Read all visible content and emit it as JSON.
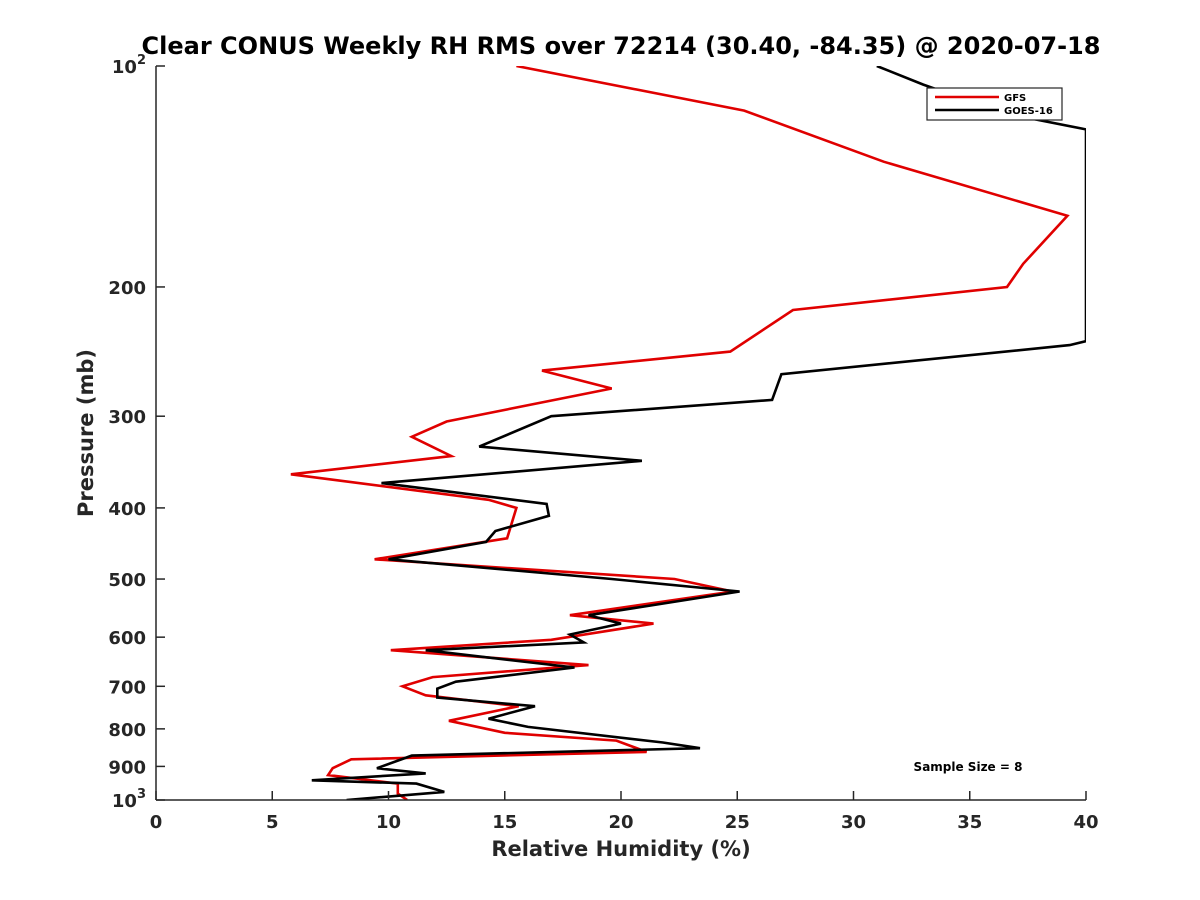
{
  "chart_data": {
    "type": "line",
    "title": "Clear CONUS Weekly RH RMS over 72214 (30.40, -84.35) @ 2020-07-18",
    "xlabel": "Relative Humidity (%)",
    "ylabel": "Pressure (mb)",
    "xlim": [
      0,
      40
    ],
    "ylim": [
      100,
      1000
    ],
    "y_scale": "log",
    "y_reversed": true,
    "x_ticks": [
      0,
      5,
      10,
      15,
      20,
      25,
      30,
      35,
      40
    ],
    "y_ticks": [
      {
        "value": 100,
        "label": "10",
        "sup": "2"
      },
      {
        "value": 200,
        "label": "200"
      },
      {
        "value": 300,
        "label": "300"
      },
      {
        "value": 400,
        "label": "400"
      },
      {
        "value": 500,
        "label": "500"
      },
      {
        "value": 600,
        "label": "600"
      },
      {
        "value": 700,
        "label": "700"
      },
      {
        "value": 800,
        "label": "800"
      },
      {
        "value": 900,
        "label": "900"
      },
      {
        "value": 1000,
        "label": "10",
        "sup": "3"
      }
    ],
    "legend_position": "top-right",
    "annotation": "Sample Size = 8",
    "series": [
      {
        "name": "GFS",
        "color": "#e00000",
        "points": [
          [
            15.5,
            100
          ],
          [
            25.3,
            115
          ],
          [
            31.3,
            135
          ],
          [
            39.2,
            160
          ],
          [
            37.3,
            186
          ],
          [
            36.6,
            200
          ],
          [
            27.4,
            215
          ],
          [
            24.7,
            245
          ],
          [
            16.6,
            260
          ],
          [
            19.6,
            275
          ],
          [
            12.5,
            305
          ],
          [
            11.0,
            320
          ],
          [
            12.7,
            340
          ],
          [
            5.8,
            360
          ],
          [
            14.3,
            390
          ],
          [
            15.5,
            400
          ],
          [
            15.1,
            440
          ],
          [
            9.4,
            470
          ],
          [
            22.3,
            500
          ],
          [
            24.8,
            520
          ],
          [
            17.8,
            560
          ],
          [
            21.4,
            575
          ],
          [
            17.0,
            605
          ],
          [
            10.1,
            625
          ],
          [
            18.6,
            655
          ],
          [
            11.9,
            680
          ],
          [
            10.6,
            700
          ],
          [
            11.6,
            720
          ],
          [
            15.6,
            745
          ],
          [
            12.6,
            780
          ],
          [
            15.0,
            810
          ],
          [
            19.8,
            830
          ],
          [
            21.1,
            860
          ],
          [
            8.4,
            880
          ],
          [
            7.6,
            905
          ],
          [
            7.4,
            925
          ],
          [
            10.4,
            950
          ],
          [
            10.4,
            980
          ],
          [
            10.8,
            1000
          ]
        ]
      },
      {
        "name": "GOES-16",
        "color": "#000000",
        "points": [
          [
            31.0,
            100
          ],
          [
            33.0,
            106
          ],
          [
            36.5,
            116
          ],
          [
            40.0,
            122
          ],
          [
            40.0,
            237
          ],
          [
            39.3,
            240
          ],
          [
            26.9,
            263
          ],
          [
            26.5,
            285
          ],
          [
            17.0,
            300
          ],
          [
            13.9,
            330
          ],
          [
            20.9,
            345
          ],
          [
            9.7,
            370
          ],
          [
            16.8,
            395
          ],
          [
            16.9,
            410
          ],
          [
            14.6,
            430
          ],
          [
            14.2,
            445
          ],
          [
            10.0,
            470
          ],
          [
            19.6,
            500
          ],
          [
            25.1,
            520
          ],
          [
            18.6,
            560
          ],
          [
            20.0,
            575
          ],
          [
            17.8,
            595
          ],
          [
            18.4,
            610
          ],
          [
            11.6,
            625
          ],
          [
            18.0,
            660
          ],
          [
            12.9,
            690
          ],
          [
            12.1,
            705
          ],
          [
            12.1,
            725
          ],
          [
            16.3,
            745
          ],
          [
            14.3,
            775
          ],
          [
            16.0,
            795
          ],
          [
            21.8,
            835
          ],
          [
            23.4,
            850
          ],
          [
            11.0,
            870
          ],
          [
            9.5,
            905
          ],
          [
            11.6,
            920
          ],
          [
            6.7,
            940
          ],
          [
            11.2,
            950
          ],
          [
            12.4,
            975
          ],
          [
            8.2,
            1000
          ]
        ]
      }
    ]
  }
}
